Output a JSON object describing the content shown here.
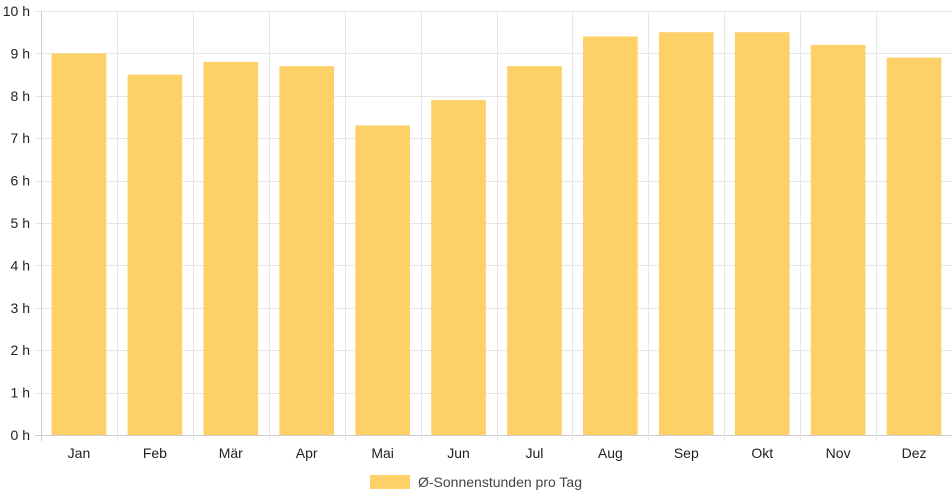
{
  "chart_data": {
    "type": "bar",
    "categories": [
      "Jan",
      "Feb",
      "Mär",
      "Apr",
      "Mai",
      "Jun",
      "Jul",
      "Aug",
      "Sep",
      "Okt",
      "Nov",
      "Dez"
    ],
    "series": [
      {
        "name": "Ø-Sonnenstunden pro Tag",
        "values": [
          9.0,
          8.5,
          8.8,
          8.7,
          7.3,
          7.9,
          8.7,
          9.4,
          9.5,
          9.5,
          9.2,
          8.9
        ]
      }
    ],
    "y_ticks": [
      "0 h",
      "1 h",
      "2 h",
      "3 h",
      "4 h",
      "5 h",
      "6 h",
      "7 h",
      "8 h",
      "9 h",
      "10 h"
    ],
    "ylim": [
      0,
      10
    ],
    "grid": true,
    "legend_position": "bottom",
    "colors": {
      "bar": "#fdd068",
      "grid": "#e6e6e6",
      "axis": "#cccccc"
    }
  }
}
